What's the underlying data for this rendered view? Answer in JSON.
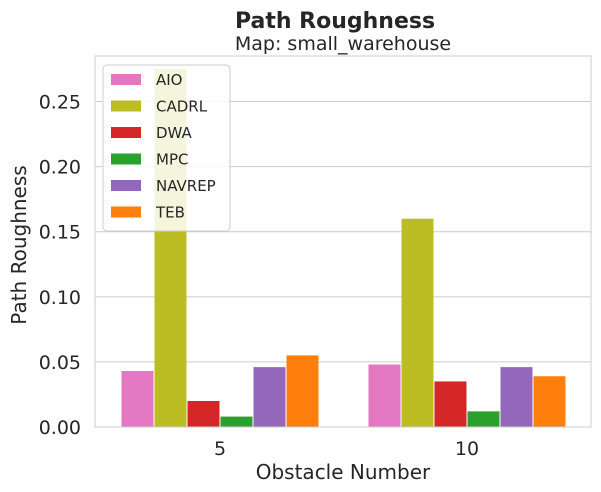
{
  "chart_data": {
    "type": "bar",
    "title": "Path Roughness",
    "subtitle": "Map: small_warehouse",
    "xlabel": "Obstacle Number",
    "ylabel": "Path Roughness",
    "categories": [
      "5",
      "10"
    ],
    "ylim": [
      0,
      0.285
    ],
    "yticks": [
      "0.00",
      "0.05",
      "0.10",
      "0.15",
      "0.20",
      "0.25"
    ],
    "grid": true,
    "legend_position": "top-left",
    "series": [
      {
        "name": "AIO",
        "color": "#e377c2",
        "values": [
          0.043,
          0.048
        ]
      },
      {
        "name": "CADRL",
        "color": "#bcbd22",
        "values": [
          0.275,
          0.16
        ]
      },
      {
        "name": "DWA",
        "color": "#d62728",
        "values": [
          0.02,
          0.035
        ]
      },
      {
        "name": "MPC",
        "color": "#2ca02c",
        "values": [
          0.008,
          0.012
        ]
      },
      {
        "name": "NAVREP",
        "color": "#9467bd",
        "values": [
          0.046,
          0.046
        ]
      },
      {
        "name": "TEB",
        "color": "#ff7f0e",
        "values": [
          0.055,
          0.039
        ]
      }
    ]
  }
}
